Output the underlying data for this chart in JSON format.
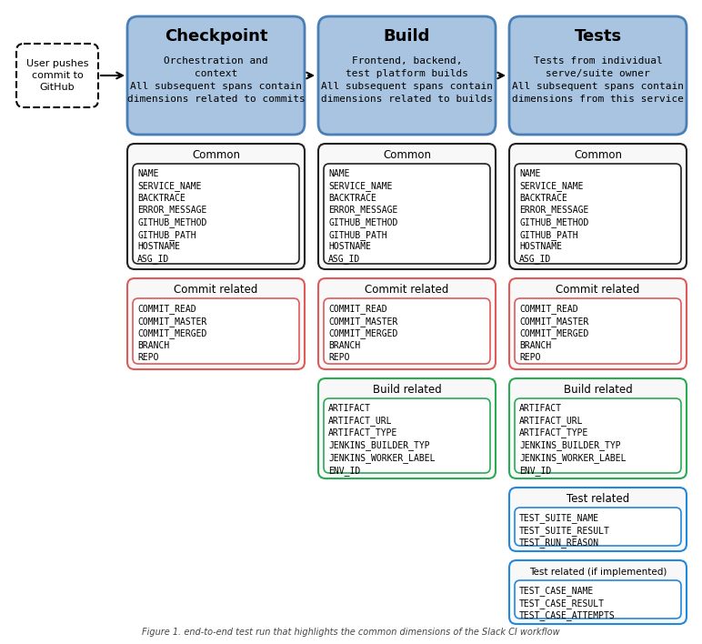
{
  "bg_color": "#ffffff",
  "header_bg": "#a8c4e0",
  "header_border": "#4a7fb5",
  "common_border": "#222222",
  "commit_border": "#e05a5a",
  "build_border": "#2aaa55",
  "test_border": "#2288dd",
  "columns": [
    "Checkpoint",
    "Build",
    "Tests"
  ],
  "col_subtitles": [
    "Orchestration and\ncontext\nAll subsequent spans contain\ndimensions related to commits",
    "Frontend, backend,\ntest platform builds\nAll subsequent spans contain\ndimensions related to builds",
    "Tests from individual\nserve/suite owner\nAll subsequent spans contain\ndimensions from this service"
  ],
  "common_items": [
    "NAME\nSERVICE_NAME\nBACKTRACE\nERROR_MESSAGE\nGITHUB_METHOD\nGITHUB_PATH\nHOSTNAME\nASG_ID",
    "NAME\nSERVICE_NAME\nBACKTRACE\nERROR_MESSAGE\nGITHUB_METHOD\nGITHUB_PATH\nHOSTNAME\nASG_ID",
    "NAME\nSERVICE_NAME\nBACKTRACE\nERROR_MESSAGE\nGITHUB_METHOD\nGITHUB_PATH\nHOSTNAME\nASG_ID"
  ],
  "commit_items": [
    "COMMIT_READ\nCOMMIT_MASTER\nCOMMIT_MERGED\nBRANCH\nREPO",
    "COMMIT_READ\nCOMMIT_MASTER\nCOMMIT_MERGED\nBRANCH\nREPO",
    "COMMIT_READ\nCOMMIT_MASTER\nCOMMIT_MERGED\nBRANCH\nREPO"
  ],
  "build_items": [
    null,
    "ARTIFACT\nARTIFACT_URL\nARTIFACT_TYPE\nJENKINS_BUILDER_TYP\nJENKINS_WORKER_LABEL\nENV_ID",
    "ARTIFACT\nARTIFACT_URL\nARTIFACT_TYPE\nJENKINS_BUILDER_TYP\nJENKINS_WORKER_LABEL\nENV_ID"
  ],
  "test_items": [
    null,
    null,
    "TEST_SUITE_NAME\nTEST_SUITE_RESULT\nTEST_RUN_REASON"
  ],
  "test_impl_items": [
    null,
    null,
    "TEST_CASE_NAME\nTEST_CASE_RESULT\nTEST_CASE_ATTEMPTS"
  ],
  "user_box_text": "User pushes\ncommit to\nGitHub"
}
